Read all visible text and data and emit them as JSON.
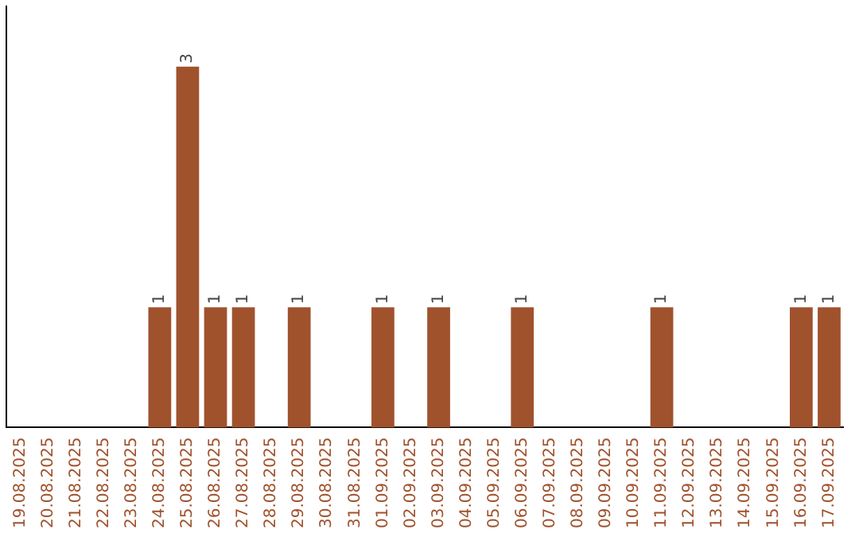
{
  "chart_data": {
    "type": "bar",
    "categories": [
      "19.08.2025",
      "20.08.2025",
      "21.08.2025",
      "22.08.2025",
      "23.08.2025",
      "24.08.2025",
      "25.08.2025",
      "26.08.2025",
      "27.08.2025",
      "28.08.2025",
      "29.08.2025",
      "30.08.2025",
      "31.08.2025",
      "01.09.2025",
      "02.09.2025",
      "03.09.2025",
      "04.09.2025",
      "05.09.2025",
      "06.09.2025",
      "07.09.2025",
      "08.09.2025",
      "09.09.2025",
      "10.09.2025",
      "11.09.2025",
      "12.09.2025",
      "13.09.2025",
      "14.09.2025",
      "15.09.2025",
      "16.09.2025",
      "17.09.2025"
    ],
    "values": [
      0,
      0,
      0,
      0,
      0,
      1,
      3,
      1,
      1,
      0,
      1,
      0,
      0,
      1,
      0,
      1,
      0,
      0,
      1,
      0,
      0,
      0,
      0,
      1,
      0,
      0,
      0,
      0,
      1,
      1
    ],
    "value_labels": [
      null,
      null,
      null,
      null,
      null,
      "1",
      "3",
      "1",
      "1",
      null,
      "1",
      null,
      null,
      "1",
      null,
      "1",
      null,
      null,
      "1",
      null,
      null,
      null,
      null,
      "1",
      null,
      null,
      null,
      null,
      "1",
      "1"
    ],
    "color": "#a0522d",
    "tick_labels": "x",
    "grid": false,
    "legend": false
  }
}
